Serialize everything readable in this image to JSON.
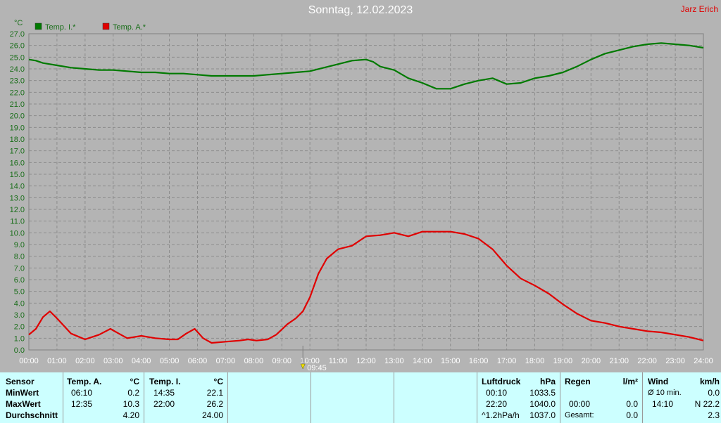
{
  "header": {
    "title": "Sonntag, 12.02.2023",
    "author": "Jarz Erich"
  },
  "chart_data": {
    "type": "line",
    "title": "Sonntag, 12.02.2023",
    "ylabel": "°C",
    "ylim": [
      0,
      27
    ],
    "xlim": [
      0,
      24
    ],
    "yticks": [
      "0.0",
      "1.0",
      "2.0",
      "3.0",
      "4.0",
      "5.0",
      "6.0",
      "7.0",
      "8.0",
      "9.0",
      "10.0",
      "11.0",
      "12.0",
      "13.0",
      "14.0",
      "15.0",
      "16.0",
      "17.0",
      "18.0",
      "19.0",
      "20.0",
      "21.0",
      "22.0",
      "23.0",
      "24.0",
      "25.0",
      "26.0",
      "27.0"
    ],
    "xticks": [
      "00:00",
      "01:00",
      "02:00",
      "03:00",
      "04:00",
      "05:00",
      "06:00",
      "07:00",
      "08:00",
      "09:00",
      "10:00",
      "11:00",
      "12:00",
      "13:00",
      "14:00",
      "15:00",
      "16:00",
      "17:00",
      "18:00",
      "19:00",
      "20:00",
      "21:00",
      "22:00",
      "23:00",
      "24:00"
    ],
    "grid": true,
    "legend_position": "top-left",
    "marker": {
      "label": "09:45",
      "x": 9.75
    },
    "series": [
      {
        "name": "Temp. I.*",
        "color": "#007a00",
        "x": [
          0,
          0.25,
          0.5,
          0.75,
          1,
          1.5,
          2,
          2.5,
          3,
          3.5,
          4,
          4.5,
          5,
          5.5,
          6,
          6.5,
          7,
          7.5,
          8,
          8.5,
          9,
          9.5,
          10,
          10.5,
          11,
          11.5,
          12,
          12.25,
          12.5,
          13,
          13.5,
          14,
          14.5,
          15,
          15.5,
          16,
          16.5,
          17,
          17.5,
          18,
          18.5,
          19,
          19.5,
          20,
          20.5,
          21,
          21.5,
          22,
          22.5,
          23,
          23.5,
          24
        ],
        "y": [
          24.8,
          24.7,
          24.5,
          24.4,
          24.3,
          24.1,
          24.0,
          23.9,
          23.9,
          23.8,
          23.7,
          23.7,
          23.6,
          23.6,
          23.5,
          23.4,
          23.4,
          23.4,
          23.4,
          23.5,
          23.6,
          23.7,
          23.8,
          24.1,
          24.4,
          24.7,
          24.8,
          24.6,
          24.2,
          23.9,
          23.2,
          22.8,
          22.3,
          22.3,
          22.7,
          23.0,
          23.2,
          22.7,
          22.8,
          23.2,
          23.4,
          23.7,
          24.2,
          24.8,
          25.3,
          25.6,
          25.9,
          26.1,
          26.2,
          26.1,
          26.0,
          25.8
        ]
      },
      {
        "name": "Temp. A.*",
        "color": "#e00000",
        "x": [
          0,
          0.25,
          0.5,
          0.75,
          1,
          1.5,
          2,
          2.5,
          2.9,
          3.2,
          3.5,
          4,
          4.5,
          5,
          5.3,
          5.6,
          5.9,
          6.2,
          6.5,
          7,
          7.5,
          7.8,
          8.1,
          8.5,
          8.8,
          9.2,
          9.5,
          9.75,
          10,
          10.3,
          10.6,
          11,
          11.5,
          12,
          12.5,
          13,
          13.5,
          14,
          14.5,
          15,
          15.5,
          16,
          16.5,
          17,
          17.5,
          18,
          18.5,
          19,
          19.5,
          20,
          20.5,
          21,
          21.5,
          22,
          22.5,
          23,
          23.5,
          24
        ],
        "y": [
          1.3,
          1.8,
          2.8,
          3.3,
          2.7,
          1.4,
          0.9,
          1.3,
          1.8,
          1.4,
          1.0,
          1.2,
          1.0,
          0.9,
          0.9,
          1.4,
          1.8,
          1.0,
          0.6,
          0.7,
          0.8,
          0.9,
          0.8,
          0.9,
          1.3,
          2.2,
          2.7,
          3.3,
          4.5,
          6.5,
          7.8,
          8.6,
          8.9,
          9.7,
          9.8,
          10.0,
          9.7,
          10.1,
          10.1,
          10.1,
          9.9,
          9.5,
          8.6,
          7.2,
          6.1,
          5.5,
          4.8,
          3.9,
          3.1,
          2.5,
          2.3,
          2.0,
          1.8,
          1.6,
          1.5,
          1.3,
          1.1,
          0.8
        ]
      }
    ]
  },
  "stats": {
    "sensor": {
      "header": "Sensor",
      "rows": [
        "MinWert",
        "MaxWert",
        "Durchschnitt"
      ]
    },
    "temp_a": {
      "header": "Temp. A.",
      "unit": "°C",
      "min_time": "06:10",
      "min_val": "0.2",
      "max_time": "12:35",
      "max_val": "10.3",
      "avg": "4.20"
    },
    "temp_i": {
      "header": "Temp. I.",
      "unit": "°C",
      "min_time": "14:35",
      "min_val": "22.1",
      "max_time": "22:00",
      "max_val": "26.2",
      "avg": "24.00"
    },
    "pressure": {
      "header": "Luftdruck",
      "unit": "hPa",
      "min_time": "00:10",
      "min_val": "1033.5",
      "max_time": "22:20",
      "max_val": "1040.0",
      "trend": "^1.2hPa/h",
      "current": "1037.0"
    },
    "rain": {
      "header": "Regen",
      "unit": "l/m²",
      "max_time": "00:00",
      "max_val": "0.0",
      "total_label": "Gesamt:",
      "total_val": "0.0"
    },
    "wind": {
      "header": "Wind",
      "unit": "km/h",
      "avg_label": "Ø 10 min.",
      "avg_val": "0.0",
      "max_time": "14:10",
      "max_val": "N 22.2",
      "avg2": "2.3"
    }
  }
}
